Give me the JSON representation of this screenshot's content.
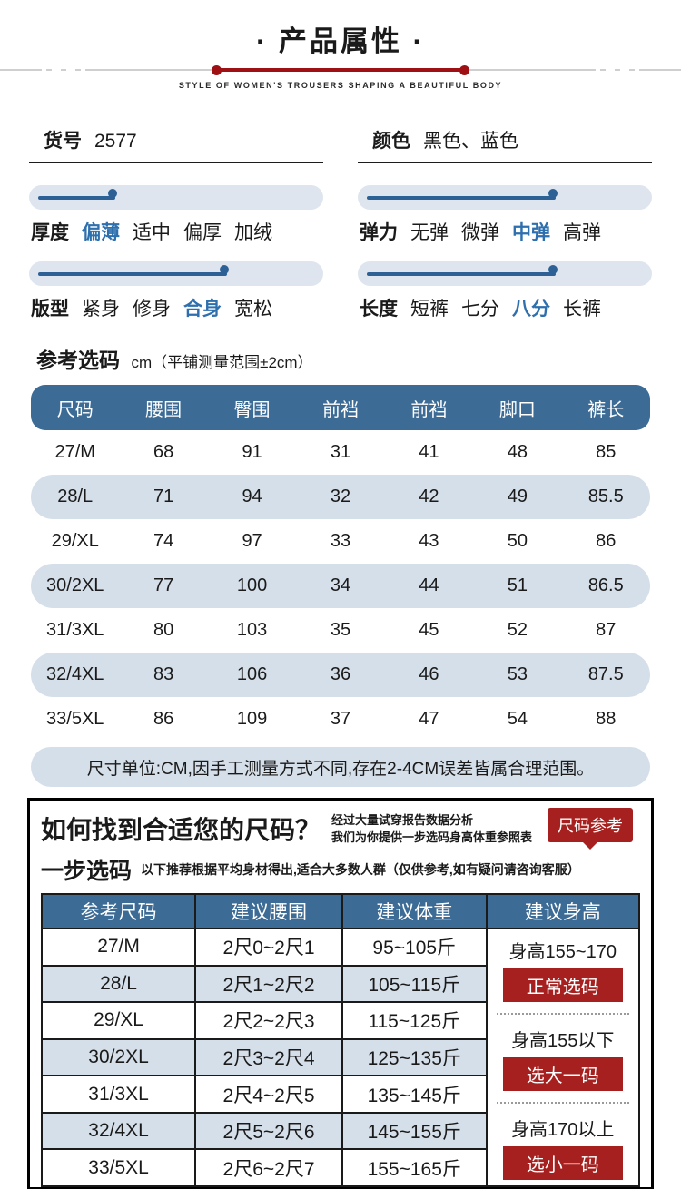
{
  "header": {
    "title": "· 产品属性 ·",
    "subtitle": "STYLE OF WOMEN'S TROUSERS SHAPING A BEAUTIFUL BODY"
  },
  "info": {
    "item_label": "货号",
    "item_value": "2577",
    "color_label": "颜色",
    "color_value": "黑色、蓝色"
  },
  "attributes": [
    {
      "label": "厚度",
      "options": [
        "偏薄",
        "适中",
        "偏厚",
        "加绒"
      ],
      "selected": 0,
      "percent": 30
    },
    {
      "label": "弹力",
      "options": [
        "无弹",
        "微弹",
        "中弹",
        "高弹"
      ],
      "selected": 2,
      "percent": 68
    },
    {
      "label": "版型",
      "options": [
        "紧身",
        "修身",
        "合身",
        "宽松"
      ],
      "selected": 2,
      "percent": 68
    },
    {
      "label": "长度",
      "options": [
        "短裤",
        "七分",
        "八分",
        "长裤"
      ],
      "selected": 2,
      "percent": 68
    }
  ],
  "size_section": {
    "heading": "参考选码",
    "heading_suffix": "cm（平铺测量范围±2cm）",
    "columns": [
      "尺码",
      "腰围",
      "臀围",
      "前裆",
      "前裆",
      "脚口",
      "裤长"
    ],
    "rows": [
      [
        "27/M",
        "68",
        "91",
        "31",
        "41",
        "48",
        "85"
      ],
      [
        "28/L",
        "71",
        "94",
        "32",
        "42",
        "49",
        "85.5"
      ],
      [
        "29/XL",
        "74",
        "97",
        "33",
        "43",
        "50",
        "86"
      ],
      [
        "30/2XL",
        "77",
        "100",
        "34",
        "44",
        "51",
        "86.5"
      ],
      [
        "31/3XL",
        "80",
        "103",
        "35",
        "45",
        "52",
        "87"
      ],
      [
        "32/4XL",
        "83",
        "106",
        "36",
        "46",
        "53",
        "87.5"
      ],
      [
        "33/5XL",
        "86",
        "109",
        "37",
        "47",
        "54",
        "88"
      ]
    ],
    "note": "尺寸单位:CM,因手工测量方式不同,存在2-4CM误差皆属合理范围。"
  },
  "guide": {
    "title": "如何找到合适您的尺码？",
    "desc_line1": "经过大量试穿报告数据分析",
    "desc_line2": "我们为你提供一步选码身高体重参照表",
    "badge": "尺码参考",
    "step_title": "一步选码",
    "step_desc": "以下推荐根据平均身材得出,适合大多数人群（仅供参考,如有疑问请咨询客服）",
    "table": {
      "columns": [
        "参考尺码",
        "建议腰围",
        "建议体重",
        "建议身高"
      ],
      "rows": [
        [
          "27/M",
          "2尺0~2尺1",
          "95~105斤"
        ],
        [
          "28/L",
          "2尺1~2尺2",
          "105~115斤"
        ],
        [
          "29/XL",
          "2尺2~2尺3",
          "115~125斤"
        ],
        [
          "30/2XL",
          "2尺3~2尺4",
          "125~135斤"
        ],
        [
          "31/3XL",
          "2尺4~2尺5",
          "135~145斤"
        ],
        [
          "32/4XL",
          "2尺5~2尺6",
          "145~155斤"
        ],
        [
          "33/5XL",
          "2尺6~2尺7",
          "155~165斤"
        ]
      ],
      "height_advice": [
        {
          "text": "身高155~170",
          "tag": "正常选码"
        },
        {
          "text": "身高155以下",
          "tag": "选大一码"
        },
        {
          "text": "身高170以上",
          "tag": "选小一码"
        }
      ]
    }
  },
  "colors": {
    "accent_blue": "#2e6fae",
    "header_blue": "#3c6b96",
    "row_blue": "#d5dfe9",
    "track_blue": "#dee5ee",
    "slider_blue": "#2d6094",
    "line_red": "#9e1013",
    "badge_red": "#a6201f"
  }
}
